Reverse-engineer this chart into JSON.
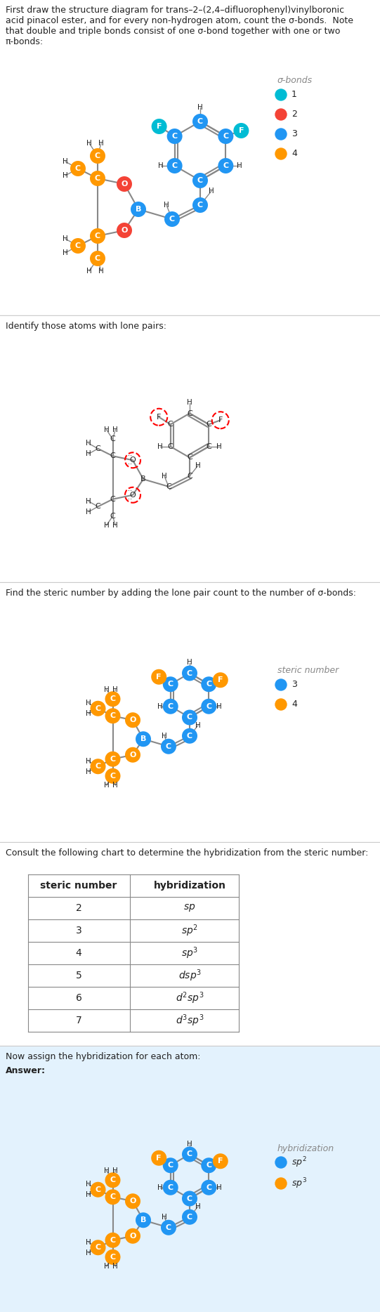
{
  "title1": "First draw the structure diagram for trans–2–(2,4–difluorophenyl)vinylboronic\nacid pinacol ester, and for every non-hydrogen atom, count the σ-bonds.  Note\nthat double and triple bonds consist of one σ-bond together with one or two\nπ-bonds:",
  "title2": "Identify those atoms with lone pairs:",
  "title3": "Find the steric number by adding the lone pair count to the number of σ-bonds:",
  "title4": "Consult the following chart to determine the hybridization from the steric number:",
  "title5": "Now assign the hybridization for each atom:",
  "answer": "Answer:",
  "C1": "#00BCD4",
  "C2": "#F44336",
  "C3": "#2196F3",
  "C4": "#FF9800",
  "GRAY": "#888888",
  "BLACK": "#222222",
  "BG_ANSWER": "#E3F2FD",
  "table": [
    [
      "steric number",
      "hybridization"
    ],
    [
      "2",
      "sp"
    ],
    [
      "3",
      "sp²"
    ],
    [
      "4",
      "sp³"
    ],
    [
      "5",
      "dsp³"
    ],
    [
      "6",
      "d²sp³"
    ],
    [
      "7",
      "d³sp³"
    ]
  ]
}
